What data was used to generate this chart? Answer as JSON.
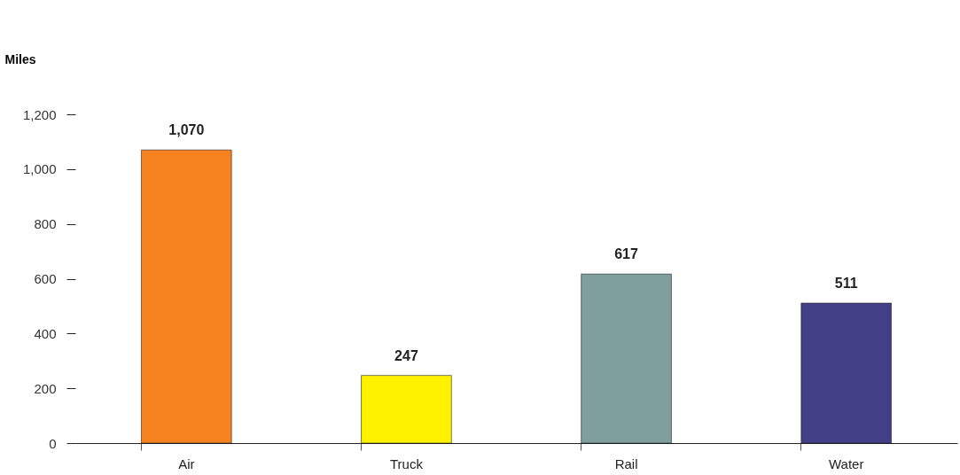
{
  "chart_data": {
    "type": "bar",
    "ylabel": "Miles",
    "categories": [
      "Air",
      "Truck",
      "Rail",
      "Water"
    ],
    "values": [
      1070,
      247,
      617,
      511
    ],
    "colors": [
      "#f5821f",
      "#fff200",
      "#7f9f9f",
      "#433f86"
    ],
    "ylim": [
      0,
      1200
    ],
    "yticks": [
      0,
      200,
      400,
      600,
      800,
      {
        "value": 1000,
        "label": "1,000"
      },
      {
        "value": 1200,
        "label": "1,200"
      }
    ],
    "value_labels": [
      "1,070",
      "247",
      "617",
      "511"
    ],
    "grid": false,
    "legend": false
  }
}
